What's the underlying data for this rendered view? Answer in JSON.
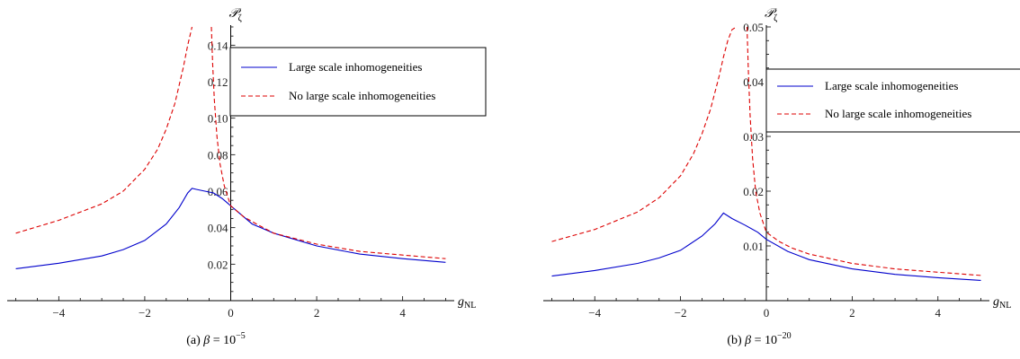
{
  "chart_data": [
    {
      "type": "line",
      "caption_prefix": "(a)",
      "caption_math": "β = 10",
      "caption_exp": "−5",
      "xlabel_main": "g",
      "xlabel_sub": "NL",
      "ylabel_main": "𝒫",
      "ylabel_sub": "ζ",
      "xlim": [
        -5.2,
        5.2
      ],
      "ylim": [
        0.0,
        0.15
      ],
      "x_ticks": [
        -4,
        -2,
        0,
        2,
        4
      ],
      "x_tick_labels": [
        "−4",
        "−2",
        "0",
        "2",
        "4"
      ],
      "y_ticks": [
        0.02,
        0.04,
        0.06,
        0.08,
        0.1,
        0.12,
        0.14
      ],
      "y_tick_labels": [
        "0.02",
        "0.04",
        "0.06",
        "0.08",
        "0.10",
        "0.12",
        "0.14"
      ],
      "legend_position": "top-right",
      "series": [
        {
          "name": "Large scale inhomogeneities",
          "color": "#0000cc",
          "dash": "solid",
          "x": [
            -5,
            -4,
            -3,
            -2.5,
            -2,
            -1.5,
            -1.2,
            -1.0,
            -0.9,
            -0.8,
            -0.6,
            -0.4,
            -0.2,
            0,
            0.5,
            1,
            2,
            3,
            4,
            5
          ],
          "y": [
            0.0175,
            0.0205,
            0.0245,
            0.028,
            0.033,
            0.042,
            0.051,
            0.059,
            0.0615,
            0.061,
            0.06,
            0.059,
            0.056,
            0.052,
            0.042,
            0.037,
            0.03,
            0.0255,
            0.023,
            0.021
          ]
        },
        {
          "name": "No large scale inhomogeneities",
          "color": "#dd0000",
          "dash": "dashed",
          "branches": [
            {
              "x": [
                -5,
                -4,
                -3,
                -2.5,
                -2,
                -1.7,
                -1.5,
                -1.3,
                -1.1,
                -1.0,
                -0.9
              ],
              "y": [
                0.037,
                0.044,
                0.053,
                0.06,
                0.072,
                0.083,
                0.094,
                0.108,
                0.128,
                0.14,
                0.15
              ]
            },
            {
              "x": [
                -0.45,
                -0.42,
                -0.38,
                -0.32,
                -0.25,
                -0.15,
                0,
                0.3,
                0.6,
                1,
                2,
                3,
                4,
                5
              ],
              "y": [
                0.15,
                0.13,
                0.11,
                0.09,
                0.075,
                0.063,
                0.052,
                0.046,
                0.042,
                0.037,
                0.031,
                0.027,
                0.025,
                0.023
              ]
            }
          ]
        }
      ]
    },
    {
      "type": "line",
      "caption_prefix": "(b)",
      "caption_math": "β = 10",
      "caption_exp": "−20",
      "xlabel_main": "g",
      "xlabel_sub": "NL",
      "ylabel_main": "𝒫",
      "ylabel_sub": "ζ",
      "xlim": [
        -5.2,
        5.2
      ],
      "ylim": [
        0.0,
        0.05
      ],
      "x_ticks": [
        -4,
        -2,
        0,
        2,
        4
      ],
      "x_tick_labels": [
        "−4",
        "−2",
        "0",
        "2",
        "4"
      ],
      "y_ticks": [
        0.01,
        0.02,
        0.03,
        0.04,
        0.05
      ],
      "y_tick_labels": [
        "0.01",
        "0.02",
        "0.03",
        "0.04",
        "0.05"
      ],
      "legend_position": "top-right",
      "series": [
        {
          "name": "Large scale inhomogeneities",
          "color": "#0000cc",
          "dash": "solid",
          "x": [
            -5,
            -4,
            -3,
            -2.5,
            -2,
            -1.5,
            -1.2,
            -1.0,
            -0.8,
            -0.5,
            -0.2,
            0,
            0.5,
            1,
            2,
            3,
            4,
            5
          ],
          "y": [
            0.0045,
            0.0055,
            0.0068,
            0.0078,
            0.0092,
            0.0118,
            0.014,
            0.016,
            0.015,
            0.0138,
            0.0125,
            0.0112,
            0.009,
            0.0075,
            0.0058,
            0.0048,
            0.0042,
            0.0037
          ]
        },
        {
          "name": "No large scale inhomogeneities",
          "color": "#dd0000",
          "dash": "dashed",
          "branches": [
            {
              "x": [
                -5,
                -4,
                -3,
                -2.5,
                -2,
                -1.7,
                -1.5,
                -1.3,
                -1.1,
                -1.0,
                -0.9,
                -0.8,
                -0.7
              ],
              "y": [
                0.0108,
                0.013,
                0.0162,
                0.0188,
                0.0228,
                0.0268,
                0.0305,
                0.035,
                0.041,
                0.0445,
                0.0475,
                0.0495,
                0.05
              ]
            },
            {
              "x": [
                -0.45,
                -0.42,
                -0.38,
                -0.32,
                -0.25,
                -0.15,
                0,
                0.3,
                0.6,
                1,
                2,
                3,
                4,
                5
              ],
              "y": [
                0.05,
                0.042,
                0.034,
                0.026,
                0.02,
                0.016,
                0.0125,
                0.0108,
                0.0096,
                0.0085,
                0.0068,
                0.0058,
                0.0052,
                0.0046
              ]
            }
          ]
        }
      ]
    }
  ]
}
